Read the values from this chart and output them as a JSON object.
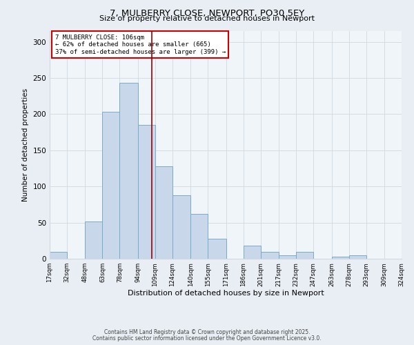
{
  "title1": "7, MULBERRY CLOSE, NEWPORT, PO30 5EY",
  "title2": "Size of property relative to detached houses in Newport",
  "xlabel": "Distribution of detached houses by size in Newport",
  "ylabel": "Number of detached properties",
  "bin_edges": [
    17,
    32,
    48,
    63,
    78,
    94,
    109,
    124,
    140,
    155,
    171,
    186,
    201,
    217,
    232,
    247,
    263,
    278,
    293,
    309,
    324
  ],
  "bar_heights": [
    10,
    0,
    52,
    203,
    243,
    185,
    128,
    88,
    62,
    28,
    0,
    18,
    10,
    5,
    10,
    0,
    3,
    5,
    0,
    0
  ],
  "bar_color": "#c8d8ea",
  "bar_edge_color": "#7aaac8",
  "vline_x": 106,
  "vline_color": "#990000",
  "annotation_line1": "7 MULBERRY CLOSE: 106sqm",
  "annotation_line2": "← 62% of detached houses are smaller (665)",
  "annotation_line3": "37% of semi-detached houses are larger (399) →",
  "annotation_box_edge_color": "#cc0000",
  "annotation_box_fill": "#ffffff",
  "ylim": [
    0,
    315
  ],
  "yticks": [
    0,
    50,
    100,
    150,
    200,
    250,
    300
  ],
  "footnote1": "Contains HM Land Registry data © Crown copyright and database right 2025.",
  "footnote2": "Contains public sector information licensed under the Open Government Licence v3.0.",
  "bg_color": "#e8eef4",
  "plot_bg_color": "#f0f5f9",
  "grid_color": "#d0d8e0"
}
